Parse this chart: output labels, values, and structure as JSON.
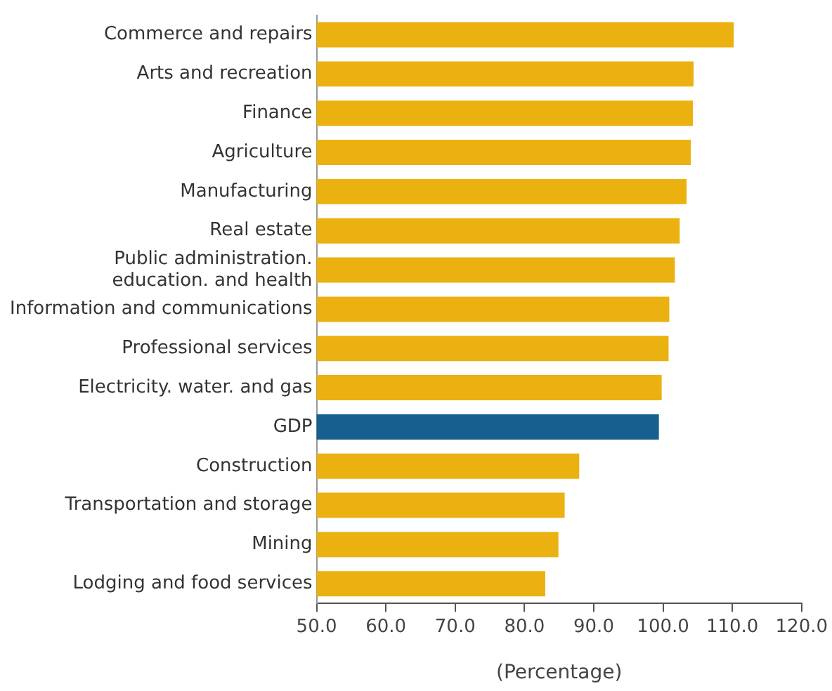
{
  "chart_data": {
    "type": "bar",
    "orientation": "horizontal",
    "xlabel": "(Percentage)",
    "categories": [
      "Commerce and repairs",
      "Arts and recreation",
      "Finance",
      "Agriculture",
      "Manufacturing",
      "Real estate",
      "Public administration. education. and health",
      "Information and communications",
      "Professional services",
      "Electricity. water. and gas",
      "GDP",
      "Construction",
      "Transportation and storage",
      "Mining",
      "Lodging and food services"
    ],
    "values": [
      110.2,
      104.4,
      104.3,
      104.0,
      103.4,
      102.4,
      101.7,
      100.9,
      100.8,
      99.8,
      99.4,
      87.9,
      85.8,
      84.9,
      83.0
    ],
    "colors": [
      "#ebb111",
      "#ebb111",
      "#ebb111",
      "#ebb111",
      "#ebb111",
      "#ebb111",
      "#ebb111",
      "#ebb111",
      "#ebb111",
      "#ebb111",
      "#175f8e",
      "#ebb111",
      "#ebb111",
      "#ebb111",
      "#ebb111"
    ],
    "xlim": [
      50,
      120
    ],
    "xticks": [
      {
        "value": 50,
        "label": "50.0"
      },
      {
        "value": 60,
        "label": "60.0"
      },
      {
        "value": 70,
        "label": "70.0"
      },
      {
        "value": 80,
        "label": "80.0"
      },
      {
        "value": 90,
        "label": "90.0"
      },
      {
        "value": 100,
        "label": "100.0"
      },
      {
        "value": 110,
        "label": "110.0"
      },
      {
        "value": 120,
        "label": "120.0"
      }
    ],
    "grid": false,
    "legend": false
  }
}
